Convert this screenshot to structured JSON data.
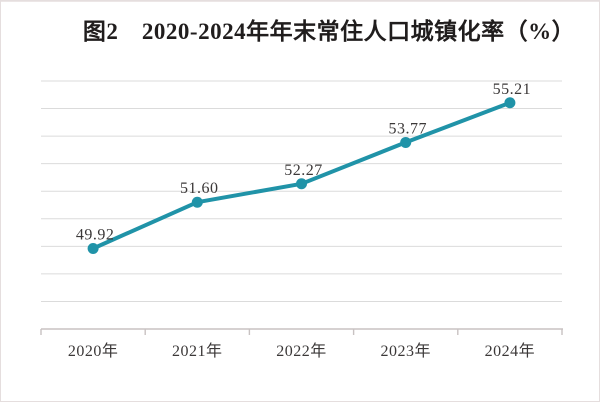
{
  "title": "图2　2020-2024年年末常住人口城镇化率（%）",
  "colors": {
    "line": "#2093a8",
    "marker": "#2093a8",
    "gridline": "#dbdbdb",
    "axis": "#c8c2c2",
    "tick": "#c8c2c2",
    "data_label_text": "#3b3838",
    "x_label_text": "#3b3838",
    "title_text": "#201d1d",
    "background": "#ffffff",
    "border": "#e5dede"
  },
  "chart_data": {
    "type": "line",
    "title": "图2　2020-2024年年末常住人口城镇化率（%）",
    "categories": [
      "2020年",
      "2021年",
      "2022年",
      "2023年",
      "2024年"
    ],
    "series": [
      {
        "name": "年末常住人口城镇化率",
        "values": [
          49.92,
          51.6,
          52.27,
          53.77,
          55.21
        ],
        "data_labels": [
          "49.92",
          "51.60",
          "52.27",
          "53.77",
          "55.21"
        ]
      }
    ],
    "xlabel": "",
    "ylabel": "",
    "ylim": [
      47,
      56
    ],
    "gridline_interval": 1,
    "grid": true,
    "y_tick_labels_visible": false,
    "legend": false,
    "legend_position": "none",
    "unit": "%"
  }
}
